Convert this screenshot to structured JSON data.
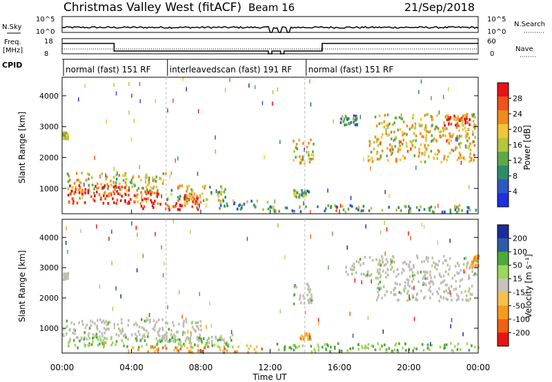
{
  "header": {
    "title": "Christmas Valley West (fitACF)",
    "beam": "Beam 16",
    "date": "21/Sep/2018"
  },
  "top_panels": {
    "nsky_label": "N.Sky",
    "nsky_ticks": [
      "10^5",
      "10^0"
    ],
    "nsearch_label": "N.Search",
    "nsearch_ticks": [
      "10^5",
      "10^0"
    ],
    "freq_label": "Freq.",
    "freq_unit": "[MHz]",
    "freq_ticks": [
      "18",
      "8"
    ],
    "nave_label": "Nave",
    "nave_ticks": [
      "60",
      "0"
    ],
    "cpid_label": "CPID",
    "cpid_segments": [
      {
        "label": "normal (fast) 151 RF",
        "start": 0,
        "end": 6
      },
      {
        "label": "interleavedscan (fast) 191 RF",
        "start": 6,
        "end": 14
      },
      {
        "label": "normal (fast) 151 RF",
        "start": 14,
        "end": 24
      }
    ]
  },
  "colors": {
    "power_scale": [
      "#1e2fe0",
      "#2a57c4",
      "#2f8a6c",
      "#5fa84a",
      "#b7c63a",
      "#f2c53a",
      "#f28a1e",
      "#f0521b",
      "#e81313"
    ],
    "velocity_scale": [
      "#e81313",
      "#f06010",
      "#f59a1a",
      "#f7c04d",
      "#c8c3ba",
      "#9cd65c",
      "#4fa83b",
      "#2f5aa8",
      "#1a2d9a"
    ],
    "ground_scatter": "#c0bdb4"
  },
  "chart_data": [
    {
      "type": "heatmap",
      "quantity": "Power",
      "ylabel": "Slant Range [km]",
      "xlabel": "Time UT",
      "x_ticks": [
        "00:00",
        "04:00",
        "08:00",
        "12:00",
        "16:00",
        "20:00",
        "00:00"
      ],
      "x_range_hours": [
        0,
        24
      ],
      "y_ticks": [
        1000,
        2000,
        3000,
        4000
      ],
      "y_range_km": [
        180,
        4600
      ],
      "colorbar_label": "Power [dB]",
      "colorbar_ticks": [
        4,
        8,
        12,
        16,
        20,
        24,
        28
      ],
      "regions": [
        {
          "t": [
            0.2,
            6.0
          ],
          "r": [
            800,
            1500
          ],
          "level": 0.55
        },
        {
          "t": [
            0.3,
            4.2
          ],
          "r": [
            500,
            1100
          ],
          "level": 0.95
        },
        {
          "t": [
            3.8,
            5.5
          ],
          "r": [
            500,
            900
          ],
          "level": 0.85
        },
        {
          "t": [
            4.5,
            8.0
          ],
          "r": [
            300,
            520
          ],
          "level": 0.92
        },
        {
          "t": [
            5.8,
            9.5
          ],
          "r": [
            600,
            1100
          ],
          "level": 0.5
        },
        {
          "t": [
            7.0,
            8.0
          ],
          "r": [
            500,
            800
          ],
          "level": 0.8
        },
        {
          "t": [
            9.0,
            12.0
          ],
          "r": [
            300,
            600
          ],
          "level": 0.35
        },
        {
          "t": [
            12.0,
            24.0
          ],
          "r": [
            220,
            450
          ],
          "level": 0.35
        },
        {
          "t": [
            13.3,
            14.5
          ],
          "r": [
            1800,
            2600
          ],
          "level": 0.6
        },
        {
          "t": [
            13.3,
            14.2
          ],
          "r": [
            700,
            950
          ],
          "level": 0.4
        },
        {
          "t": [
            17.6,
            23.8
          ],
          "r": [
            1850,
            2700
          ],
          "level": 0.6
        },
        {
          "t": [
            18.0,
            23.9
          ],
          "r": [
            2650,
            3400
          ],
          "level": 0.55
        },
        {
          "t": [
            16.0,
            17.0
          ],
          "r": [
            3050,
            3350
          ],
          "level": 0.3
        },
        {
          "t": [
            22.0,
            23.5
          ],
          "r": [
            3000,
            3400
          ],
          "level": 0.85
        },
        {
          "t": [
            0.0,
            0.3
          ],
          "r": [
            2600,
            2800
          ],
          "level": 0.5
        }
      ]
    },
    {
      "type": "heatmap",
      "quantity": "Velocity",
      "ylabel": "Slant Range [km]",
      "xlabel": "Time UT",
      "x_ticks": [
        "00:00",
        "04:00",
        "08:00",
        "12:00",
        "16:00",
        "20:00",
        "00:00"
      ],
      "x_range_hours": [
        0,
        24
      ],
      "y_ticks": [
        1000,
        2000,
        3000,
        4000
      ],
      "y_range_km": [
        180,
        4600
      ],
      "colorbar_label": "Velocity [m s⁻¹]",
      "colorbar_ticks": [
        200,
        100,
        50,
        15,
        -15,
        -50,
        -100,
        -200
      ],
      "regions": [
        {
          "t": [
            0.0,
            8.0
          ],
          "r": [
            600,
            1300
          ],
          "kind": "ground"
        },
        {
          "t": [
            5.5,
            10.0
          ],
          "r": [
            500,
            800
          ],
          "kind": "ground"
        },
        {
          "t": [
            0.3,
            9.8
          ],
          "r": [
            350,
            700
          ],
          "kind": "pos"
        },
        {
          "t": [
            4.0,
            11.5
          ],
          "r": [
            200,
            420
          ],
          "kind": "neg"
        },
        {
          "t": [
            12.0,
            24.0
          ],
          "r": [
            220,
            500
          ],
          "kind": "pos"
        },
        {
          "t": [
            13.3,
            14.5
          ],
          "r": [
            1800,
            2500
          ],
          "kind": "ground"
        },
        {
          "t": [
            13.7,
            14.3
          ],
          "r": [
            620,
            820
          ],
          "kind": "neg"
        },
        {
          "t": [
            18.0,
            23.6
          ],
          "r": [
            1900,
            2700
          ],
          "kind": "ground"
        },
        {
          "t": [
            16.3,
            23.9
          ],
          "r": [
            2700,
            3400
          ],
          "kind": "ground"
        },
        {
          "t": [
            23.5,
            24.0
          ],
          "r": [
            3000,
            3400
          ],
          "kind": "neg"
        },
        {
          "t": [
            0.0,
            0.3
          ],
          "r": [
            2600,
            2800
          ],
          "kind": "ground"
        }
      ]
    }
  ]
}
